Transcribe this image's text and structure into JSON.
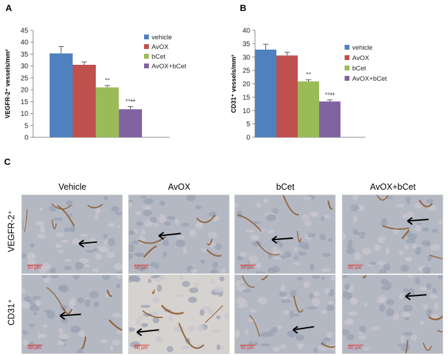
{
  "panels": {
    "a": "A",
    "b": "B",
    "c": "C"
  },
  "colors": {
    "vehicle": "#4e81bd",
    "avox": "#c0504d",
    "bcet": "#9bbb59",
    "avoxbcet": "#8064a2"
  },
  "chart_data": [
    {
      "type": "bar",
      "ylabel": "VEGFR-2⁺ vessels/mm²",
      "ylim": [
        0,
        45
      ],
      "yticks": [
        0,
        5,
        10,
        15,
        20,
        25,
        30,
        35,
        40,
        45
      ],
      "grid": false,
      "legend_position": "top-right",
      "series": [
        {
          "name": "vehicle",
          "value": 35.3,
          "error": 2.9,
          "annotation": ""
        },
        {
          "name": "AvOX",
          "value": 30.5,
          "error": 1.2,
          "annotation": ""
        },
        {
          "name": "bCet",
          "value": 21.0,
          "error": 0.8,
          "annotation": "°°"
        },
        {
          "name": "AvOX+bCet",
          "value": 11.8,
          "error": 1.1,
          "annotation": "°°**"
        }
      ]
    },
    {
      "type": "bar",
      "ylabel": "CD31⁺ vessels/mm²",
      "ylim": [
        0,
        40
      ],
      "yticks": [
        0,
        5,
        10,
        15,
        20,
        25,
        30,
        35,
        40
      ],
      "grid": false,
      "legend_position": "top-right",
      "series": [
        {
          "name": "vehicle",
          "value": 32.8,
          "error": 2.0,
          "annotation": ""
        },
        {
          "name": "AvOX",
          "value": 30.6,
          "error": 1.2,
          "annotation": ""
        },
        {
          "name": "bCet",
          "value": 20.9,
          "error": 0.6,
          "annotation": "°°"
        },
        {
          "name": "AvOX+bCet",
          "value": 13.4,
          "error": 0.6,
          "annotation": "°°**"
        }
      ]
    }
  ],
  "panel_c": {
    "columns": [
      "Vehicle",
      "AvOX",
      "bCet",
      "AvOX+bCet"
    ],
    "rows": [
      "VEGFR-2⁺",
      "CD31⁺"
    ],
    "scale_bar": "50 µm"
  }
}
